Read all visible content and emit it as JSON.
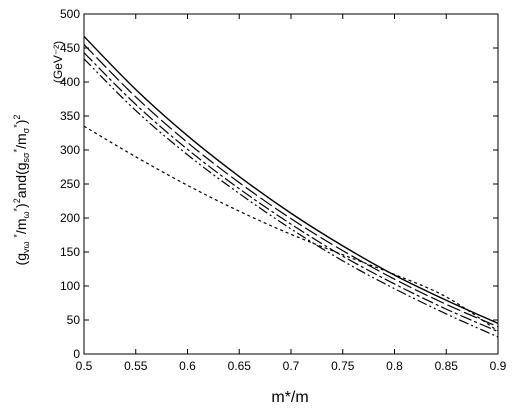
{
  "chart_data": {
    "type": "line",
    "title": "",
    "xlabel": "m*/m",
    "ylabel": "(g_vω*/m_ω*)² and (g_sσ*/m_σ*)²",
    "yunit": "(GeV⁻²)",
    "xlim": [
      0.5,
      0.9
    ],
    "ylim": [
      0,
      500
    ],
    "xticks": [
      "0.5",
      "0.55",
      "0.6",
      "0.65",
      "0.7",
      "0.75",
      "0.8",
      "0.85",
      "0.9"
    ],
    "yticks": [
      "0",
      "50",
      "100",
      "150",
      "200",
      "250",
      "300",
      "350",
      "400",
      "450",
      "500"
    ],
    "grid": false,
    "legend": "none",
    "x": [
      0.5,
      0.55,
      0.6,
      0.65,
      0.7,
      0.75,
      0.8,
      0.85,
      0.9
    ],
    "series": [
      {
        "style": "solid",
        "values": [
          467,
          389,
          321,
          261,
          207,
          159,
          116,
          79,
          45
        ]
      },
      {
        "style": "longdash",
        "values": [
          455,
          378,
          311,
          252,
          199,
          152,
          110,
          73,
          40
        ]
      },
      {
        "style": "dashdot",
        "values": [
          443,
          367,
          301,
          243,
          191,
          144,
          103,
          66,
          33
        ]
      },
      {
        "style": "dashdotdot",
        "values": [
          434,
          358,
          293,
          236,
          184,
          137,
          96,
          59,
          25
        ]
      },
      {
        "style": "dotted",
        "values": [
          335,
          290,
          248,
          210,
          176,
          146,
          117,
          84,
          34
        ]
      }
    ],
    "colors": {
      "line": "#000000",
      "axis": "#000000",
      "background": "#ffffff"
    }
  }
}
